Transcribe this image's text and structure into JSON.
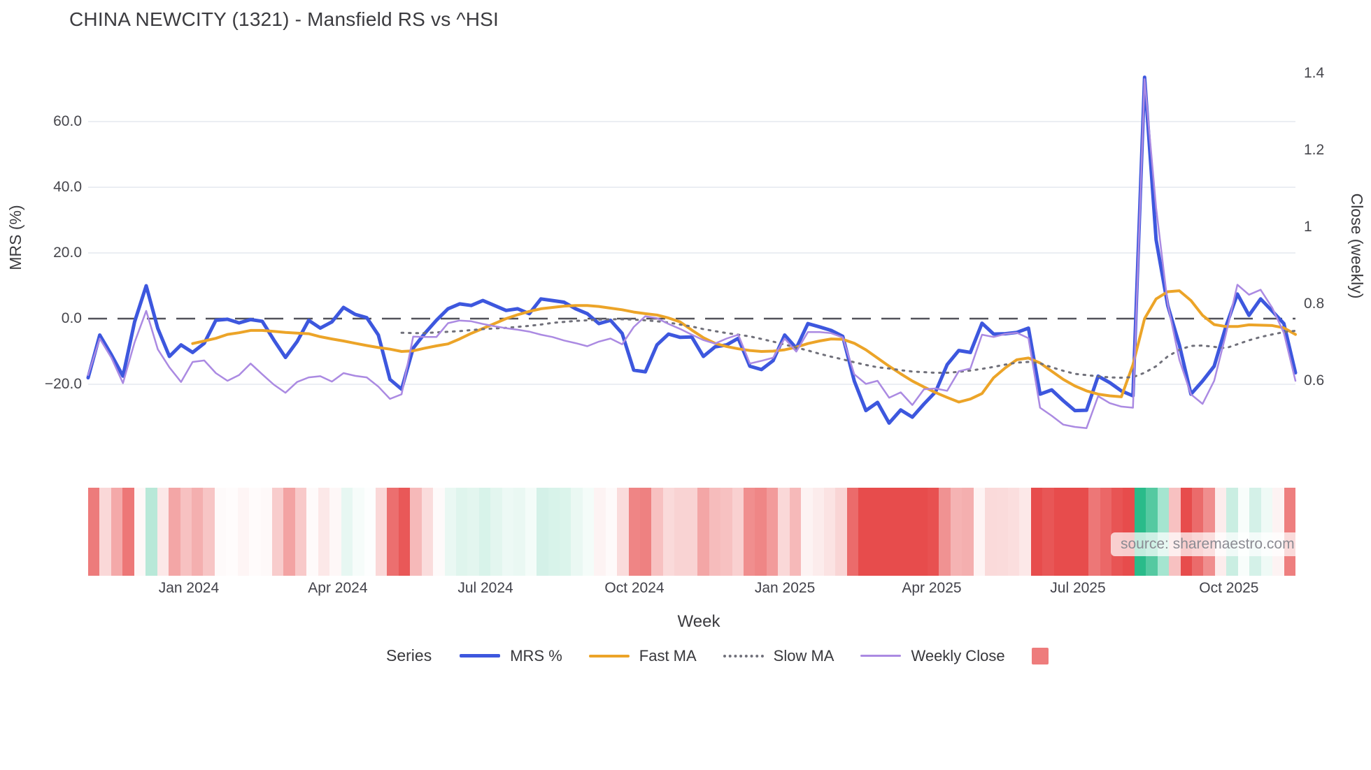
{
  "title": "CHINA NEWCITY (1321) - Mansfield RS vs ^HSI",
  "source": "source: sharemaestro.com",
  "legend": {
    "title": "Series",
    "heat_swatch_color": "#ee7c7c"
  },
  "chart_data": {
    "type": "line",
    "title": "CHINA NEWCITY (1321) - Mansfield RS vs ^HSI",
    "grid": "horizontal only, light gray; dashed dark line at MRS 0",
    "legend_position": "bottom center",
    "x_axis": {
      "label": "Week",
      "points": 105,
      "range_note": "weekly data, ~Nov 2023 to ~Nov 2025",
      "tick_labels": [
        "Jan 2024",
        "Apr 2024",
        "Jul 2024",
        "Oct 2024",
        "Jan 2025",
        "Apr 2025",
        "Jul 2025",
        "Oct 2025"
      ],
      "tick_pos": [
        0.0834,
        0.2068,
        0.3291,
        0.4525,
        0.5771,
        0.6987,
        0.8198,
        0.9449
      ]
    },
    "y_left": {
      "label": "MRS (%)",
      "tick_values": [
        60,
        40,
        20,
        0,
        -20
      ],
      "tick_labels": [
        "60.0",
        "40.0",
        "20.0",
        "0.0",
        "−20.0"
      ],
      "range": [
        -36,
        79
      ],
      "zero_line": "dashed"
    },
    "y_right": {
      "label": "Close (weekly)",
      "tick_values": [
        1.4,
        1.2,
        1.0,
        0.8,
        0.6
      ],
      "tick_labels": [
        "1.4",
        "1.2",
        "1",
        "0.8",
        "0.6"
      ],
      "range": [
        0.455,
        1.435
      ]
    },
    "series": [
      {
        "name": "MRS %",
        "axis": "left",
        "color": "#3d57de",
        "style": "solid",
        "width": 5,
        "values": [
          -18,
          -5,
          -11,
          -17.5,
          -1,
          10,
          -3,
          -11.5,
          -8,
          -10.3,
          -7.5,
          -0.5,
          -0.2,
          -1.3,
          -0.3,
          -0.8,
          -6.5,
          -11.8,
          -7,
          -0.5,
          -2.9,
          -1,
          3.4,
          1.3,
          0.3,
          -5,
          -18.5,
          -21.5,
          -9,
          -4.5,
          -0.5,
          3,
          4.5,
          4,
          5.5,
          4,
          2.5,
          3,
          1.5,
          6,
          5.5,
          5,
          3,
          1.5,
          -1.5,
          -0.5,
          -4.5,
          -15.7,
          -16.2,
          -8,
          -4.7,
          -5.7,
          -5.6,
          -11.5,
          -8.6,
          -8,
          -6,
          -14.5,
          -15.5,
          -12.8,
          -5,
          -9,
          -1.5,
          -2.5,
          -3.6,
          -5.4,
          -19,
          -28,
          -25.5,
          -31.8,
          -27.8,
          -30,
          -26,
          -22.3,
          -14,
          -9.7,
          -10.3,
          -1.4,
          -4.7,
          -4.6,
          -4.2,
          -2.9,
          -23,
          -21.7,
          -25,
          -28,
          -27.9,
          -17.5,
          -19.5,
          -22,
          -23.5,
          73.5,
          24,
          4,
          -8,
          -23,
          -19,
          -14.5,
          -2.5,
          7.5,
          1,
          6,
          2.3,
          -1.5,
          -16.5
        ]
      },
      {
        "name": "Fast MA",
        "axis": "left",
        "color": "#eca428",
        "style": "solid",
        "width": 4,
        "values": [
          null,
          null,
          null,
          null,
          null,
          null,
          null,
          null,
          null,
          -7.6,
          -6.8,
          -6,
          -4.8,
          -4.3,
          -3.6,
          -3.6,
          -3.9,
          -4.2,
          -4.4,
          -4.6,
          -5.5,
          -6.2,
          -6.8,
          -7.5,
          -8.2,
          -8.8,
          -9.3,
          -10,
          -9.8,
          -9,
          -8.3,
          -7.7,
          -6.2,
          -4.5,
          -3,
          -1.5,
          0,
          1.2,
          2.2,
          3,
          3.4,
          3.8,
          4,
          4,
          3.7,
          3.2,
          2.7,
          2,
          1.5,
          1.1,
          0.2,
          -1,
          -3.5,
          -5.8,
          -7.5,
          -8.5,
          -9.2,
          -9.7,
          -10,
          -9.9,
          -9.5,
          -8.7,
          -7.6,
          -6.8,
          -6.2,
          -6.3,
          -7.5,
          -9.5,
          -12,
          -14.5,
          -16.8,
          -19,
          -20.8,
          -22.5,
          -24,
          -25.4,
          -24.5,
          -22.8,
          -18,
          -15,
          -12.5,
          -12,
          -13.5,
          -16,
          -18.5,
          -20.5,
          -22,
          -23,
          -23.5,
          -23.8,
          -14,
          0,
          6,
          8.2,
          8.5,
          5.5,
          1,
          -1.8,
          -2.4,
          -2.4,
          -1.9,
          -2,
          -2.1,
          -2.8,
          -4.8
        ]
      },
      {
        "name": "Slow MA",
        "axis": "left",
        "color": "#70707a",
        "style": "dotted",
        "width": 3,
        "values": [
          null,
          null,
          null,
          null,
          null,
          null,
          null,
          null,
          null,
          null,
          null,
          null,
          null,
          null,
          null,
          null,
          null,
          null,
          null,
          null,
          null,
          null,
          null,
          null,
          null,
          null,
          null,
          -4.3,
          -4.4,
          -4.4,
          -4.2,
          -4,
          -3.8,
          -3.5,
          -3.2,
          -3,
          -2.8,
          -2.5,
          -2.2,
          -1.8,
          -1.3,
          -1,
          -0.7,
          -0.5,
          -0.3,
          -0.2,
          -0.2,
          -0.3,
          -0.5,
          -0.8,
          -1.2,
          -1.8,
          -2.4,
          -3.2,
          -3.8,
          -4.4,
          -4.9,
          -5.4,
          -6.2,
          -7,
          -7.9,
          -8.8,
          -9.7,
          -10.7,
          -11.6,
          -12.4,
          -13.3,
          -14.1,
          -14.8,
          -15.2,
          -15.7,
          -16.1,
          -16.3,
          -16.5,
          -16.5,
          -16.2,
          -15.8,
          -15.3,
          -14.7,
          -14,
          -13.4,
          -13.2,
          -13.6,
          -14.8,
          -15.9,
          -16.8,
          -17.2,
          -17.6,
          -17.9,
          -18,
          -17.8,
          -16.5,
          -14.5,
          -11.5,
          -9.5,
          -8.3,
          -8.2,
          -8.6,
          -9,
          -7.8,
          -6.6,
          -5.6,
          -4.8,
          -4.1,
          -3.7
        ]
      },
      {
        "name": "Weekly Close",
        "axis": "right",
        "color": "#ab8ae2",
        "style": "solid",
        "width": 2.5,
        "values": [
          0.615,
          0.71,
          0.66,
          0.594,
          0.7,
          0.782,
          0.682,
          0.635,
          0.597,
          0.649,
          0.653,
          0.62,
          0.6,
          0.615,
          0.645,
          0.617,
          0.59,
          0.569,
          0.597,
          0.609,
          0.612,
          0.598,
          0.62,
          0.613,
          0.609,
          0.585,
          0.553,
          0.565,
          0.715,
          0.714,
          0.714,
          0.75,
          0.757,
          0.755,
          0.748,
          0.742,
          0.737,
          0.733,
          0.728,
          0.72,
          0.714,
          0.705,
          0.698,
          0.69,
          0.702,
          0.71,
          0.695,
          0.74,
          0.768,
          0.763,
          0.748,
          0.735,
          0.72,
          0.706,
          0.697,
          0.71,
          0.72,
          0.645,
          0.652,
          0.66,
          0.71,
          0.676,
          0.727,
          0.727,
          0.724,
          0.713,
          0.617,
          0.592,
          0.6,
          0.556,
          0.57,
          0.537,
          0.578,
          0.58,
          0.574,
          0.625,
          0.632,
          0.72,
          0.714,
          0.722,
          0.725,
          0.711,
          0.53,
          0.509,
          0.486,
          0.48,
          0.477,
          0.56,
          0.542,
          0.533,
          0.53,
          1.385,
          1.05,
          0.8,
          0.655,
          0.565,
          0.54,
          0.6,
          0.72,
          0.85,
          0.824,
          0.837,
          0.79,
          0.725,
          0.6
        ]
      }
    ],
    "heatmap_strip": {
      "description": "weekly heat band below chart (red = negative MRS, green = positive MRS)",
      "colors": [
        "#ed7b7b",
        "#fad8d8",
        "#f4a9a9",
        "#ed7777",
        "#fef7f7",
        "#b8e8d8",
        "#fce8e8",
        "#f3a6a6",
        "#f7c1c1",
        "#f4afaf",
        "#f7c5c5",
        "#fefafa",
        "#fffcfc",
        "#fef5f5",
        "#fffbfb",
        "#fef9f9",
        "#f8cccc",
        "#f3a3a3",
        "#f8c9c9",
        "#fefafa",
        "#fce8e8",
        "#fef7f7",
        "#e7f7f2",
        "#f6fcfa",
        "#fdfefe",
        "#fad8d8",
        "#ec6f6f",
        "#e95858",
        "#f6b9b9",
        "#fadcdc",
        "#fefafa",
        "#eaf8f3",
        "#dff5ed",
        "#e3f6ef",
        "#d8f3ea",
        "#e3f6ef",
        "#edf9f5",
        "#eaf8f3",
        "#f4fcf9",
        "#d4f1e8",
        "#d8f3ea",
        "#dbf4eb",
        "#eaf8f3",
        "#f4fcf9",
        "#fdf3f3",
        "#fefafa",
        "#fadcdc",
        "#ef8585",
        "#ee8181",
        "#f7c1c1",
        "#fadada",
        "#f9d3d3",
        "#f9d3d3",
        "#f3a6a6",
        "#f6bcbc",
        "#f7c1c1",
        "#f9d0d0",
        "#f08e8e",
        "#ef8686",
        "#f29b9b",
        "#fad8d8",
        "#f6b9b9",
        "#fdf3f3",
        "#fcecec",
        "#fbe3e3",
        "#f9d5d5",
        "#eb6b6b",
        "#e74c4c",
        "#e74c4c",
        "#e74c4c",
        "#e74c4c",
        "#e74c4c",
        "#e74c4c",
        "#e85151",
        "#f09292",
        "#f5b3b3",
        "#f4afaf",
        "#fef4f4",
        "#fadada",
        "#fadbdb",
        "#fbdede",
        "#fce8e8",
        "#e74c4c",
        "#e85656",
        "#e74c4c",
        "#e74c4c",
        "#e74c4c",
        "#ed7777",
        "#eb6767",
        "#e85454",
        "#e74c4c",
        "#2abb8a",
        "#55c9a1",
        "#a5e5d0",
        "#f7c1c1",
        "#e74c4c",
        "#eb6b6b",
        "#f08e8e",
        "#fcecec",
        "#caeee2",
        "#f8fdfb",
        "#d4f1e8",
        "#effaf6",
        "#fdf3f3",
        "#ee7f7f"
      ]
    },
    "colors": {
      "zero_dash": "#52525a",
      "gridline": "#ebeef3",
      "legend_heat_square": "#ee7c7c"
    }
  }
}
